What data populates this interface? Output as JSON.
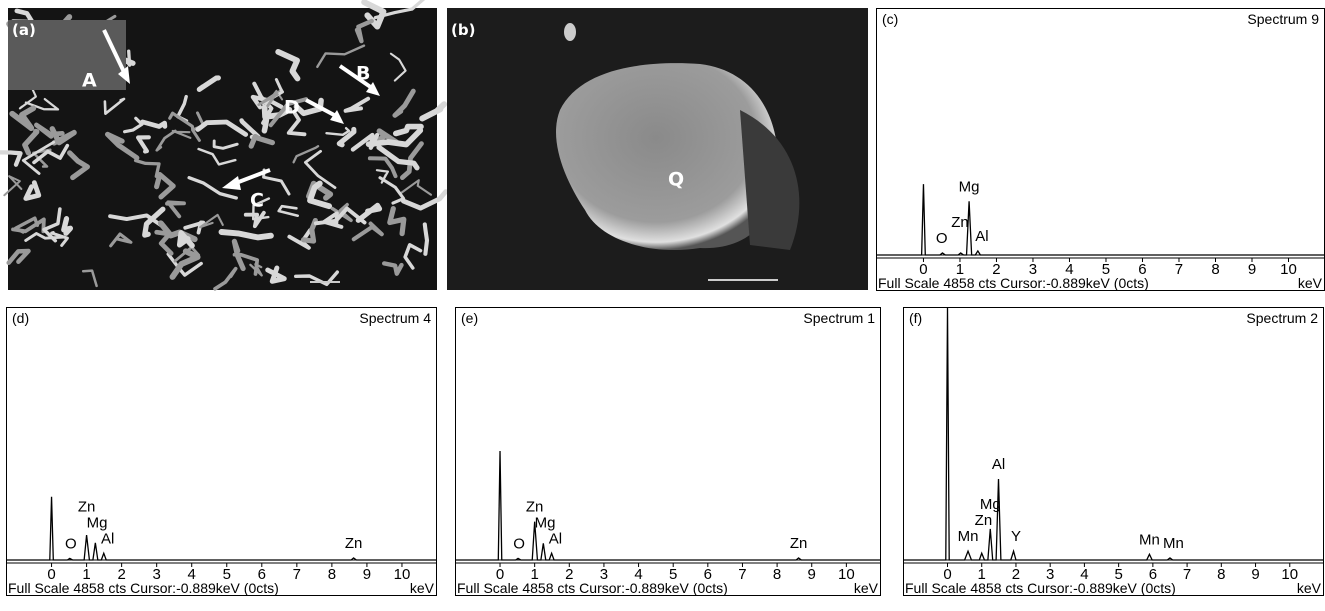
{
  "images": [
    {
      "label": "(a)",
      "markers": [
        "A",
        "B",
        "C",
        "D"
      ]
    },
    {
      "label": "(b)",
      "markers": [
        "Q"
      ]
    }
  ],
  "chart_data": [
    {
      "type": "line",
      "label": "(c)",
      "title": "Spectrum 9",
      "footer": "Full Scale 4858 cts Cursor:-0.889keV (0cts)",
      "x_label": "keV",
      "color": "#000000",
      "x": [
        -1.3,
        -0.05,
        0,
        0.05,
        0.45,
        0.52,
        0.6,
        0.95,
        1.02,
        1.1,
        1.18,
        1.25,
        1.32,
        1.42,
        1.49,
        1.56,
        11
      ],
      "values": [
        0,
        0,
        1400,
        0,
        0,
        40,
        0,
        0,
        40,
        0,
        0,
        1060,
        0,
        0,
        80,
        0,
        0
      ],
      "xlim": [
        -1.3,
        11
      ],
      "ylim": [
        0,
        4858
      ],
      "xticks": [
        0,
        1,
        2,
        3,
        4,
        5,
        6,
        7,
        8,
        9,
        10
      ],
      "labels": [
        {
          "text": "O",
          "x": 0.5
        },
        {
          "text": "Zn",
          "x": 1.0
        },
        {
          "text": "Al",
          "x": 1.6
        },
        {
          "text": "Mg",
          "x": 1.25
        }
      ]
    },
    {
      "type": "line",
      "label": "(d)",
      "title": "Spectrum 4",
      "footer": "Full Scale 4858 cts Cursor:-0.889keV (0cts)",
      "x_label": "keV",
      "color": "#000000",
      "x": [
        -1.3,
        -0.05,
        0,
        0.05,
        0.45,
        0.52,
        0.6,
        0.93,
        1.0,
        1.08,
        1.18,
        1.25,
        1.32,
        1.42,
        1.49,
        1.56,
        8.55,
        8.62,
        8.7,
        11
      ],
      "values": [
        0,
        0,
        1220,
        0,
        0,
        30,
        0,
        0,
        480,
        0,
        0,
        330,
        0,
        0,
        130,
        0,
        0,
        40,
        0,
        0
      ],
      "xlim": [
        -1.3,
        11
      ],
      "ylim": [
        0,
        4858
      ],
      "xticks": [
        0,
        1,
        2,
        3,
        4,
        5,
        6,
        7,
        8,
        9,
        10
      ],
      "labels": [
        {
          "text": "O",
          "x": 0.55
        },
        {
          "text": "Al",
          "x": 1.6
        },
        {
          "text": "Mg",
          "x": 1.3
        },
        {
          "text": "Zn",
          "x": 1.0
        },
        {
          "text": "Zn",
          "x": 8.62
        }
      ]
    },
    {
      "type": "line",
      "label": "(e)",
      "title": "Spectrum 1",
      "footer": "Full Scale 4858 cts Cursor:-0.889keV (0cts)",
      "x_label": "keV",
      "color": "#000000",
      "x": [
        -1.3,
        -0.05,
        0,
        0.05,
        0.45,
        0.52,
        0.6,
        0.93,
        1.0,
        1.08,
        1.18,
        1.25,
        1.32,
        1.42,
        1.49,
        1.56,
        8.55,
        8.62,
        8.7,
        11
      ],
      "values": [
        0,
        0,
        2100,
        0,
        0,
        30,
        0,
        0,
        740,
        0,
        0,
        320,
        0,
        0,
        130,
        0,
        0,
        40,
        0,
        0
      ],
      "xlim": [
        -1.3,
        11
      ],
      "ylim": [
        0,
        4858
      ],
      "xticks": [
        0,
        1,
        2,
        3,
        4,
        5,
        6,
        7,
        8,
        9,
        10
      ],
      "labels": [
        {
          "text": "O",
          "x": 0.55
        },
        {
          "text": "Al",
          "x": 1.6
        },
        {
          "text": "Mg",
          "x": 1.3
        },
        {
          "text": "Zn",
          "x": 1.0
        },
        {
          "text": "Zn",
          "x": 8.62
        }
      ]
    },
    {
      "type": "line",
      "label": "(f)",
      "title": "Spectrum 2",
      "footer": "Full Scale 4858 cts Cursor:-0.889keV (0cts)",
      "x_label": "keV",
      "color": "#000000",
      "x": [
        -1.3,
        -0.05,
        0,
        0.05,
        0.5,
        0.6,
        0.7,
        0.93,
        1.0,
        1.08,
        1.18,
        1.25,
        1.32,
        1.42,
        1.49,
        1.56,
        1.85,
        1.93,
        2.0,
        5.82,
        5.9,
        5.98,
        6.42,
        6.5,
        6.58,
        11
      ],
      "values": [
        0,
        0,
        4858,
        0,
        0,
        170,
        0,
        0,
        130,
        0,
        0,
        600,
        0,
        0,
        1560,
        0,
        0,
        170,
        0,
        0,
        110,
        0,
        0,
        40,
        0,
        0
      ],
      "xlim": [
        -1.3,
        11
      ],
      "ylim": [
        0,
        4858
      ],
      "xticks": [
        0,
        1,
        2,
        3,
        4,
        5,
        6,
        7,
        8,
        9,
        10
      ],
      "labels": [
        {
          "text": "Y",
          "x": 2.0
        },
        {
          "text": "Mn",
          "x": 0.6
        },
        {
          "text": "Zn",
          "x": 1.05
        },
        {
          "text": "Al",
          "x": 1.49
        },
        {
          "text": "Mg",
          "x": 1.25
        },
        {
          "text": "Mn",
          "x": 5.9
        },
        {
          "text": "Mn",
          "x": 6.6
        }
      ]
    }
  ]
}
